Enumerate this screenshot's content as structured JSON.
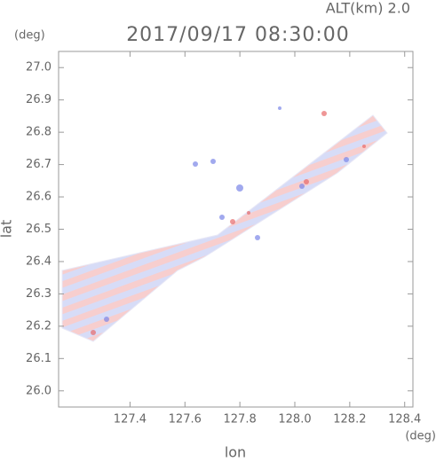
{
  "chart_data": {
    "type": "map",
    "title": "2017/09/17 08:30:00",
    "subtitle": "ALT(km) 2.0",
    "y_unit": "(deg)",
    "x_unit": "(deg)",
    "x_label": "lon",
    "y_label": "lat",
    "xlim": [
      127.14,
      128.43
    ],
    "ylim": [
      25.95,
      27.05
    ],
    "xticks": [
      127.4,
      127.6,
      127.8,
      {
        "value": 128.0,
        "label": "128.0"
      },
      128.2,
      128.4
    ],
    "yticks": [
      {
        "value": 26.0,
        "label": "26.0"
      },
      26.1,
      26.2,
      26.3,
      26.4,
      26.5,
      26.6,
      26.7,
      26.8,
      26.9,
      {
        "value": 27.0,
        "label": "27.0"
      }
    ]
  }
}
